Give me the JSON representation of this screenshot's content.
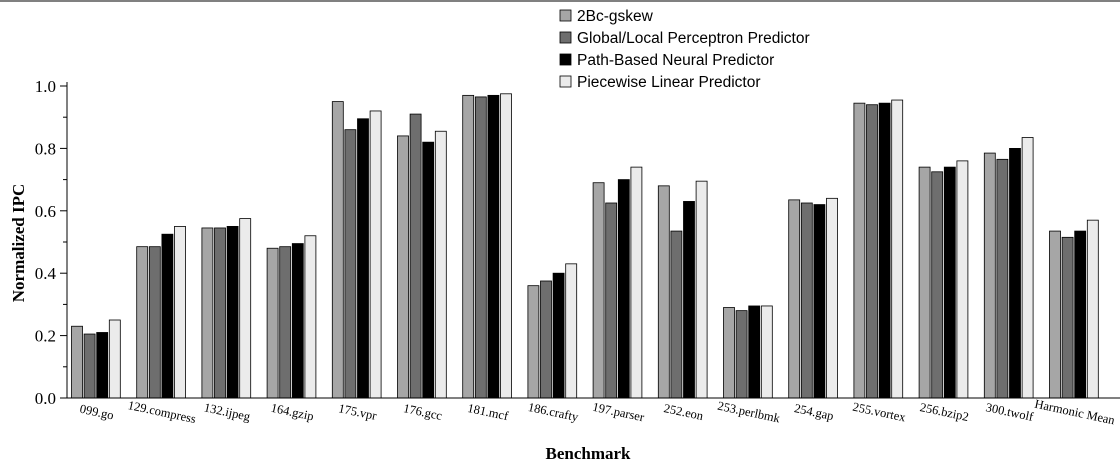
{
  "chart_data": {
    "type": "bar",
    "title": "",
    "xlabel": "Benchmark",
    "ylabel": "Normalized IPC",
    "ylim": [
      0,
      1.0
    ],
    "yticks": [
      "0.0",
      "0.2",
      "0.4",
      "0.6",
      "0.8",
      "1.0"
    ],
    "grid": false,
    "legend_position": "top-right",
    "categories": [
      "099.go",
      "129.compress",
      "132.ijpeg",
      "164.gzip",
      "175.vpr",
      "176.gcc",
      "181.mcf",
      "186.crafty",
      "197.parser",
      "252.eon",
      "253.perlbmk",
      "254.gap",
      "255.vortex",
      "256.bzip2",
      "300.twolf",
      "Harmonic Mean"
    ],
    "series": [
      {
        "name": "2Bc-gskew",
        "color": "#a6a6a6",
        "values": [
          0.23,
          0.485,
          0.545,
          0.48,
          0.95,
          0.84,
          0.97,
          0.36,
          0.69,
          0.68,
          0.29,
          0.635,
          0.945,
          0.74,
          0.785,
          0.535
        ]
      },
      {
        "name": "Global/Local Perceptron Predictor",
        "color": "#6e6e6e",
        "values": [
          0.205,
          0.485,
          0.545,
          0.485,
          0.86,
          0.91,
          0.965,
          0.375,
          0.625,
          0.535,
          0.28,
          0.625,
          0.94,
          0.725,
          0.765,
          0.515
        ]
      },
      {
        "name": "Path-Based Neural Predictor",
        "color": "#000000",
        "values": [
          0.21,
          0.525,
          0.55,
          0.495,
          0.895,
          0.82,
          0.97,
          0.4,
          0.7,
          0.63,
          0.295,
          0.62,
          0.945,
          0.74,
          0.8,
          0.535
        ]
      },
      {
        "name": "Piecewise Linear Predictor",
        "color": "#ebebeb",
        "values": [
          0.25,
          0.55,
          0.575,
          0.52,
          0.92,
          0.855,
          0.975,
          0.43,
          0.74,
          0.695,
          0.295,
          0.64,
          0.955,
          0.76,
          0.835,
          0.57
        ]
      }
    ]
  }
}
